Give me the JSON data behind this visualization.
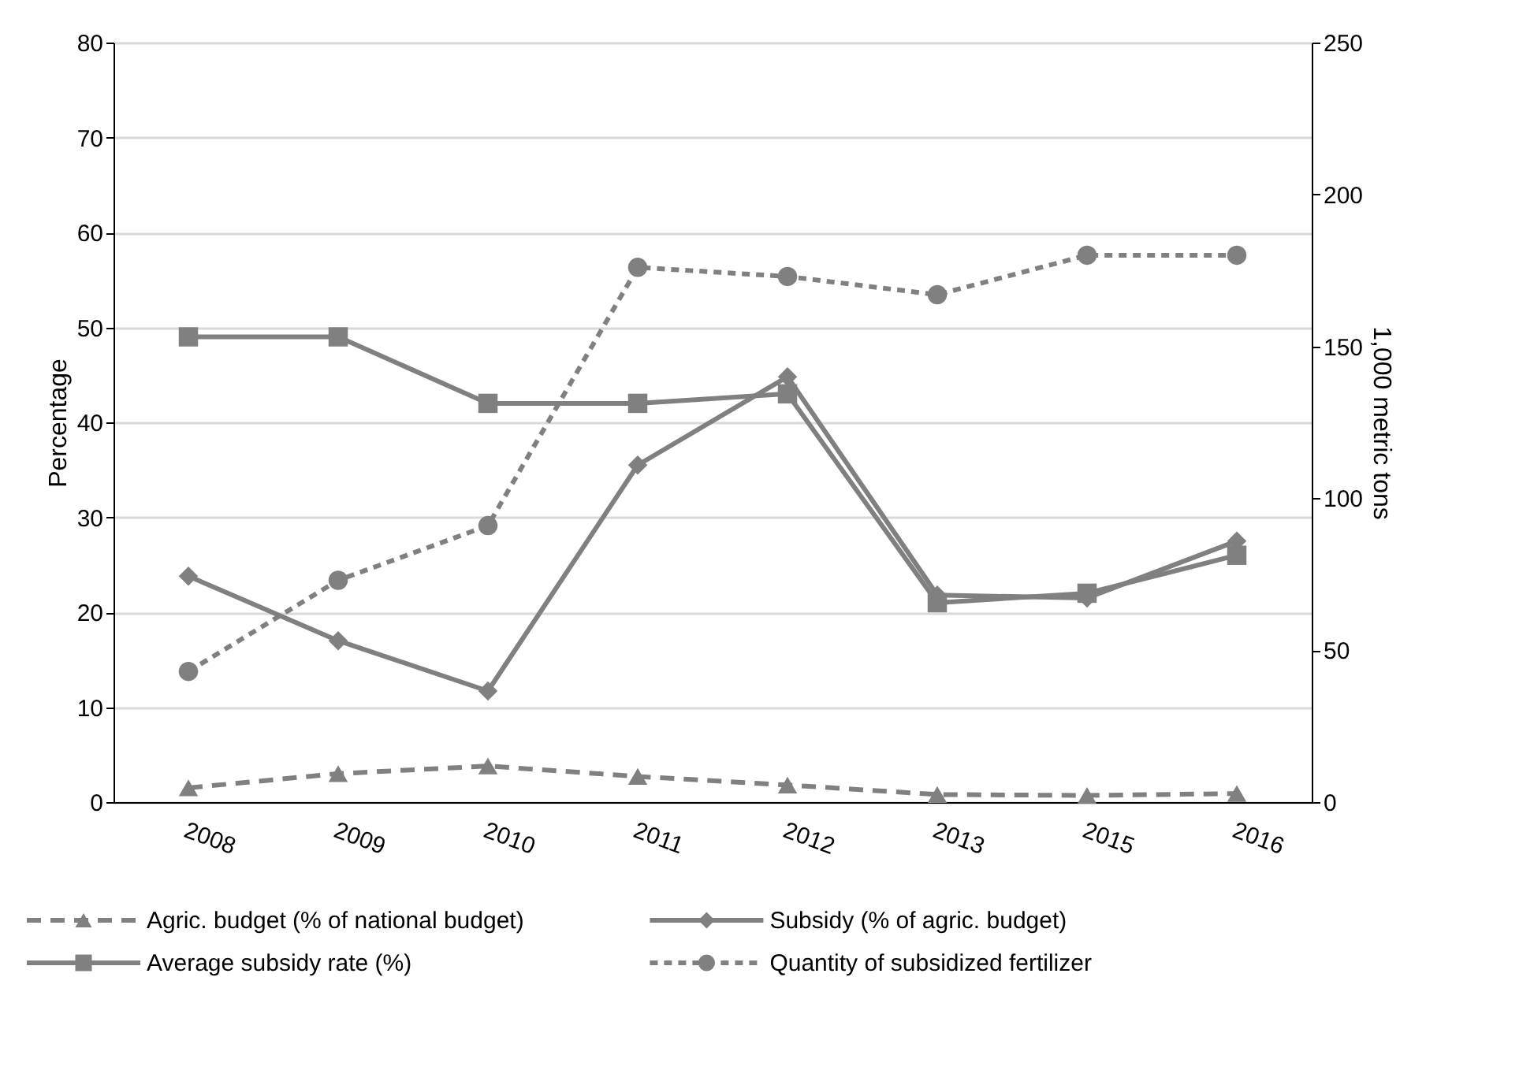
{
  "chart_data": {
    "type": "line",
    "ylabel": "Percentage",
    "y2label": "1,000 metric tons",
    "categories": [
      "2008",
      "2009",
      "2010",
      "2011",
      "2012",
      "2013",
      "2015",
      "2016"
    ],
    "ylim": [
      0,
      80
    ],
    "yticks": [
      0,
      10,
      20,
      30,
      40,
      50,
      60,
      70,
      80
    ],
    "y2lim": [
      0,
      250
    ],
    "y2ticks": [
      0,
      50,
      100,
      150,
      200,
      250
    ],
    "grid": "y",
    "legend": "bottom",
    "series": [
      {
        "name": "Agric. budget (% of national budget)",
        "color": "#808080",
        "marker": "triangle",
        "line_style": "dashed",
        "values": [
          1.5,
          3,
          3.8,
          2.7,
          1.8,
          0.8,
          0.7,
          0.9
        ]
      },
      {
        "name": "Subsidy (% of agric. budget)",
        "color": "#808080",
        "marker": "diamond",
        "line_style": "solid",
        "values": [
          23.8,
          17,
          11.7,
          35.5,
          44.8,
          21.8,
          21.5,
          27.5
        ]
      },
      {
        "name": "Average subsidy rate (%)",
        "color": "#808080",
        "marker": "square",
        "line_style": "solid",
        "values": [
          49,
          49,
          42,
          42,
          43,
          21,
          22,
          26
        ]
      },
      {
        "name": "Quantity of subsidized fertilizer",
        "color": "#808080",
        "marker": "circle",
        "line_style": "dotted",
        "axis": "y2",
        "values": [
          43,
          73,
          91,
          176,
          173,
          167,
          180,
          180
        ]
      }
    ]
  }
}
